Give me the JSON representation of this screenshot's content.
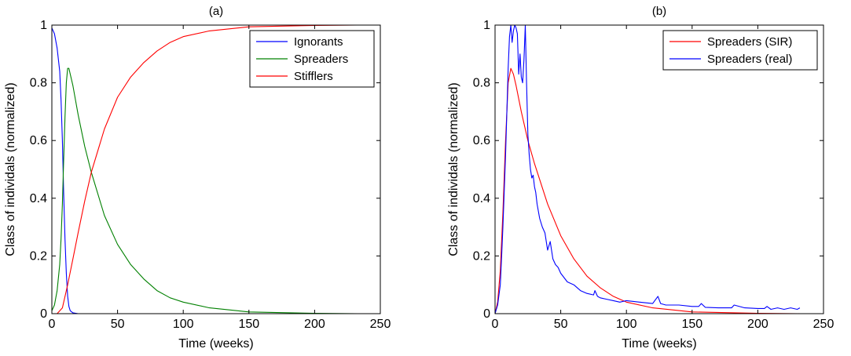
{
  "chart_data": [
    {
      "type": "line",
      "title": "(a)",
      "xlabel": "Time (weeks)",
      "ylabel": "Class of individals (normalized)",
      "xlim": [
        0,
        250
      ],
      "ylim": [
        0,
        1
      ],
      "xticks": [
        0,
        50,
        100,
        150,
        200,
        250
      ],
      "yticks": [
        0,
        0.2,
        0.4,
        0.6,
        0.8,
        1
      ],
      "grid": false,
      "legend_position": "top-right",
      "series": [
        {
          "name": "Ignorants",
          "color": "#0000ff",
          "x": [
            0,
            2,
            4,
            6,
            7,
            8,
            9,
            10,
            11,
            12,
            13,
            14,
            16,
            20,
            30,
            100,
            200,
            232
          ],
          "y": [
            0.99,
            0.97,
            0.92,
            0.84,
            0.74,
            0.6,
            0.42,
            0.26,
            0.14,
            0.06,
            0.025,
            0.01,
            0.003,
            0.0,
            0.0,
            0.0,
            0.0,
            0.0
          ]
        },
        {
          "name": "Spreaders",
          "color": "#008000",
          "x": [
            0,
            2,
            4,
            6,
            7,
            8,
            9,
            10,
            11,
            12,
            13,
            14,
            16,
            18,
            20,
            25,
            30,
            40,
            50,
            60,
            70,
            80,
            90,
            100,
            120,
            150,
            200,
            232
          ],
          "y": [
            0.01,
            0.03,
            0.08,
            0.17,
            0.26,
            0.38,
            0.53,
            0.68,
            0.8,
            0.85,
            0.85,
            0.83,
            0.79,
            0.74,
            0.69,
            0.58,
            0.49,
            0.34,
            0.24,
            0.17,
            0.12,
            0.08,
            0.055,
            0.04,
            0.02,
            0.006,
            0.001,
            0.0
          ]
        },
        {
          "name": "Stifflers",
          "color": "#ff0000",
          "x": [
            0,
            4,
            8,
            12,
            16,
            20,
            25,
            30,
            40,
            50,
            60,
            70,
            80,
            90,
            100,
            120,
            150,
            200,
            232
          ],
          "y": [
            0.0,
            0.0,
            0.02,
            0.1,
            0.19,
            0.28,
            0.39,
            0.49,
            0.64,
            0.75,
            0.82,
            0.87,
            0.91,
            0.94,
            0.96,
            0.98,
            0.994,
            0.999,
            1.0
          ]
        }
      ]
    },
    {
      "type": "line",
      "title": "(b)",
      "xlabel": "Time (weeks)",
      "ylabel": "Class of individals (normalized)",
      "xlim": [
        0,
        250
      ],
      "ylim": [
        0,
        1
      ],
      "xticks": [
        0,
        50,
        100,
        150,
        200,
        250
      ],
      "yticks": [
        0,
        0.2,
        0.4,
        0.6,
        0.8,
        1
      ],
      "grid": false,
      "legend_position": "top-right",
      "series": [
        {
          "name": "Spreaders (SIR)",
          "color": "#ff0000",
          "x": [
            0,
            2,
            4,
            6,
            8,
            10,
            12,
            14,
            16,
            20,
            25,
            30,
            40,
            50,
            60,
            70,
            80,
            90,
            100,
            120,
            150,
            200,
            232
          ],
          "y": [
            0.0,
            0.04,
            0.15,
            0.35,
            0.6,
            0.8,
            0.85,
            0.83,
            0.79,
            0.7,
            0.6,
            0.52,
            0.38,
            0.27,
            0.19,
            0.13,
            0.09,
            0.06,
            0.04,
            0.02,
            0.006,
            0.001,
            0.0
          ]
        },
        {
          "name": "Spreaders (real)",
          "color": "#0000ff",
          "x": [
            0,
            2,
            4,
            5,
            6,
            8,
            10,
            11,
            12,
            13,
            14,
            15,
            16,
            17,
            18,
            19,
            20,
            21,
            22,
            23,
            24,
            25,
            26,
            27,
            28,
            29,
            30,
            31,
            32,
            34,
            36,
            38,
            40,
            42,
            44,
            46,
            48,
            50,
            55,
            60,
            65,
            70,
            75,
            76,
            78,
            80,
            85,
            90,
            95,
            100,
            110,
            120,
            124,
            126,
            130,
            140,
            150,
            155,
            157,
            160,
            170,
            180,
            182,
            190,
            200,
            205,
            207,
            210,
            215,
            220,
            225,
            230,
            232
          ],
          "y": [
            0.0,
            0.03,
            0.1,
            0.2,
            0.3,
            0.55,
            0.85,
            0.96,
            1.0,
            0.94,
            0.98,
            1.0,
            0.99,
            0.97,
            0.83,
            0.9,
            0.82,
            0.8,
            0.88,
            1.0,
            0.8,
            0.62,
            0.55,
            0.5,
            0.47,
            0.48,
            0.44,
            0.42,
            0.38,
            0.33,
            0.3,
            0.28,
            0.22,
            0.25,
            0.19,
            0.17,
            0.16,
            0.14,
            0.11,
            0.1,
            0.08,
            0.07,
            0.065,
            0.08,
            0.06,
            0.055,
            0.05,
            0.045,
            0.04,
            0.045,
            0.04,
            0.035,
            0.06,
            0.035,
            0.03,
            0.03,
            0.025,
            0.025,
            0.035,
            0.022,
            0.02,
            0.02,
            0.03,
            0.02,
            0.018,
            0.018,
            0.025,
            0.015,
            0.02,
            0.015,
            0.02,
            0.015,
            0.02
          ]
        }
      ]
    }
  ]
}
